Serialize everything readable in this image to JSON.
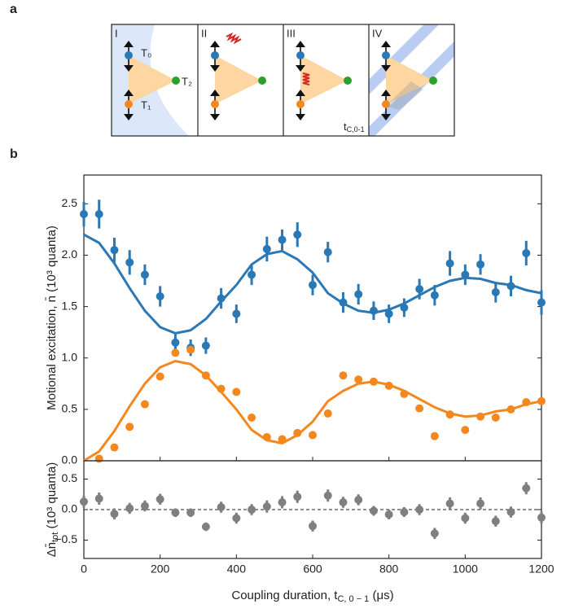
{
  "figure": {
    "panel_labels": [
      "a",
      "b"
    ],
    "diagram": {
      "panels": [
        "I",
        "II",
        "III",
        "IV"
      ],
      "T0": "T₀",
      "T1": "T₁",
      "T2": "T₂",
      "t_label": {
        "main": "t",
        "sub": "C,0-1"
      }
    }
  },
  "chart_data": [
    {
      "type": "scatter",
      "x": [
        0,
        40,
        80,
        120,
        160,
        200,
        240,
        280,
        320,
        360,
        400,
        440,
        480,
        520,
        560,
        600,
        640,
        680,
        720,
        760,
        800,
        840,
        880,
        920,
        960,
        1000,
        1040,
        1080,
        1120,
        1160,
        1200
      ],
      "xlim": [
        0,
        1200
      ],
      "xticks": [
        0,
        200,
        400,
        600,
        800,
        1000,
        1200
      ],
      "show_xtick_labels": false,
      "ylim": [
        0,
        2.78
      ],
      "yticks": [
        {
          "value": 0,
          "label": "0.0"
        },
        {
          "value": 0.5,
          "label": "0.5"
        },
        {
          "value": 1,
          "label": "1.0"
        },
        {
          "value": 1.5,
          "label": "1.5"
        },
        {
          "value": 2,
          "label": "2.0"
        },
        {
          "value": 2.5,
          "label": "2.5"
        }
      ],
      "ylabel": [
        {
          "text": "Motional excitation, n̄ (10³ quanta)"
        }
      ],
      "series": [
        {
          "style": "line",
          "color": "#2a78b5",
          "values": [
            2.2,
            2.12,
            1.92,
            1.68,
            1.46,
            1.3,
            1.24,
            1.27,
            1.38,
            1.55,
            1.71,
            1.91,
            2.01,
            2.04,
            1.96,
            1.83,
            1.63,
            1.53,
            1.46,
            1.44,
            1.47,
            1.53,
            1.61,
            1.69,
            1.75,
            1.78,
            1.77,
            1.73,
            1.71,
            1.66,
            1.63
          ]
        },
        {
          "style": "line",
          "color": "#f5871f",
          "values": [
            0.0,
            0.09,
            0.29,
            0.53,
            0.75,
            0.91,
            0.97,
            0.94,
            0.83,
            0.67,
            0.5,
            0.3,
            0.2,
            0.17,
            0.25,
            0.38,
            0.58,
            0.68,
            0.75,
            0.77,
            0.74,
            0.68,
            0.6,
            0.52,
            0.46,
            0.43,
            0.44,
            0.48,
            0.5,
            0.55,
            0.58
          ]
        },
        {
          "style": "errorbar",
          "color": "#2a78b5",
          "values": [
            2.4,
            2.4,
            2.05,
            1.93,
            1.81,
            1.6,
            1.15,
            1.1,
            1.12,
            1.58,
            1.43,
            1.81,
            2.06,
            2.15,
            2.2,
            1.71,
            2.03,
            1.54,
            1.62,
            1.46,
            1.43,
            1.49,
            1.67,
            1.61,
            1.92,
            1.81,
            1.91,
            1.64,
            1.7,
            2.02,
            1.54
          ],
          "errors": [
            0.12,
            0.14,
            0.12,
            0.12,
            0.1,
            0.1,
            0.08,
            0.08,
            0.08,
            0.1,
            0.09,
            0.1,
            0.12,
            0.1,
            0.12,
            0.1,
            0.1,
            0.1,
            0.1,
            0.09,
            0.09,
            0.09,
            0.1,
            0.1,
            0.12,
            0.1,
            0.1,
            0.1,
            0.1,
            0.12,
            0.12
          ]
        },
        {
          "style": "markers",
          "color": "#f5871f",
          "values": [
            null,
            0.02,
            0.13,
            0.33,
            0.55,
            0.82,
            1.05,
            1.08,
            0.83,
            0.7,
            0.67,
            0.42,
            0.23,
            0.21,
            0.27,
            0.25,
            0.46,
            0.83,
            0.79,
            0.77,
            0.73,
            0.65,
            0.51,
            0.24,
            0.45,
            0.3,
            0.43,
            0.42,
            0.5,
            0.57,
            0.58
          ]
        }
      ]
    },
    {
      "type": "scatter",
      "x": [
        0,
        40,
        80,
        120,
        160,
        200,
        240,
        280,
        320,
        360,
        400,
        440,
        480,
        520,
        560,
        600,
        640,
        680,
        720,
        760,
        800,
        840,
        880,
        920,
        960,
        1000,
        1040,
        1080,
        1120,
        1160,
        1200
      ],
      "xlim": [
        0,
        1200
      ],
      "xticks": [
        0,
        200,
        400,
        600,
        800,
        1000,
        1200
      ],
      "show_xtick_labels": true,
      "xlabel": [
        {
          "text": "Coupling duration, t"
        },
        {
          "text": "C, 0 − 1",
          "sub": true
        },
        {
          "text": " (μs)"
        }
      ],
      "ylim": [
        -0.8,
        0.8
      ],
      "yticks": [
        {
          "value": -0.5,
          "label": "−0.5"
        },
        {
          "value": 0,
          "label": "0.0"
        },
        {
          "value": 0.5,
          "label": "0.5"
        }
      ],
      "ylabel": [
        {
          "text": "Δn̄"
        },
        {
          "text": "tot",
          "sub": true
        },
        {
          "text": " (10³ quanta)"
        }
      ],
      "hline": {
        "value": 0,
        "style": "dashed"
      },
      "series": [
        {
          "style": "errorbar",
          "color": "#7f7f7f",
          "values": [
            0.13,
            0.18,
            -0.07,
            0.02,
            0.06,
            0.17,
            -0.05,
            -0.05,
            -0.28,
            0.04,
            -0.14,
            0.0,
            0.05,
            0.12,
            0.21,
            -0.27,
            0.23,
            0.12,
            0.16,
            -0.02,
            -0.08,
            -0.04,
            0.0,
            -0.39,
            0.1,
            -0.14,
            0.1,
            -0.19,
            -0.04,
            0.35,
            -0.13
          ],
          "errors": [
            0.1,
            0.1,
            0.09,
            0.09,
            0.09,
            0.09,
            0.07,
            0.07,
            0.07,
            0.09,
            0.09,
            0.09,
            0.1,
            0.1,
            0.1,
            0.09,
            0.1,
            0.09,
            0.09,
            0.08,
            0.08,
            0.08,
            0.09,
            0.09,
            0.1,
            0.09,
            0.1,
            0.09,
            0.09,
            0.1,
            0.1
          ]
        }
      ]
    }
  ]
}
